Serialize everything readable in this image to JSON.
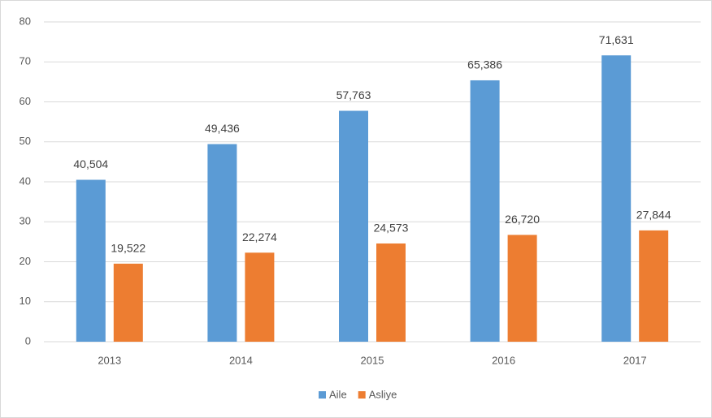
{
  "chart_data": {
    "type": "bar",
    "categories": [
      "2013",
      "2014",
      "2015",
      "2016",
      "2017"
    ],
    "series": [
      {
        "name": "Aile",
        "color": "#5b9bd5",
        "values": [
          40.504,
          49.436,
          57.763,
          65.386,
          71.631
        ],
        "value_labels": [
          "40,504",
          "49,436",
          "57,763",
          "65,386",
          "71,631"
        ]
      },
      {
        "name": "Asliye",
        "color": "#ed7d31",
        "values": [
          19.522,
          22.274,
          24.573,
          26.72,
          27.844
        ],
        "value_labels": [
          "19,522",
          "22,274",
          "24,573",
          "26,720",
          "27,844"
        ]
      }
    ],
    "ylim": [
      0,
      80
    ],
    "yticks": [
      0,
      10,
      20,
      30,
      40,
      50,
      60,
      70,
      80
    ],
    "grid": true,
    "legend": "bottom"
  }
}
